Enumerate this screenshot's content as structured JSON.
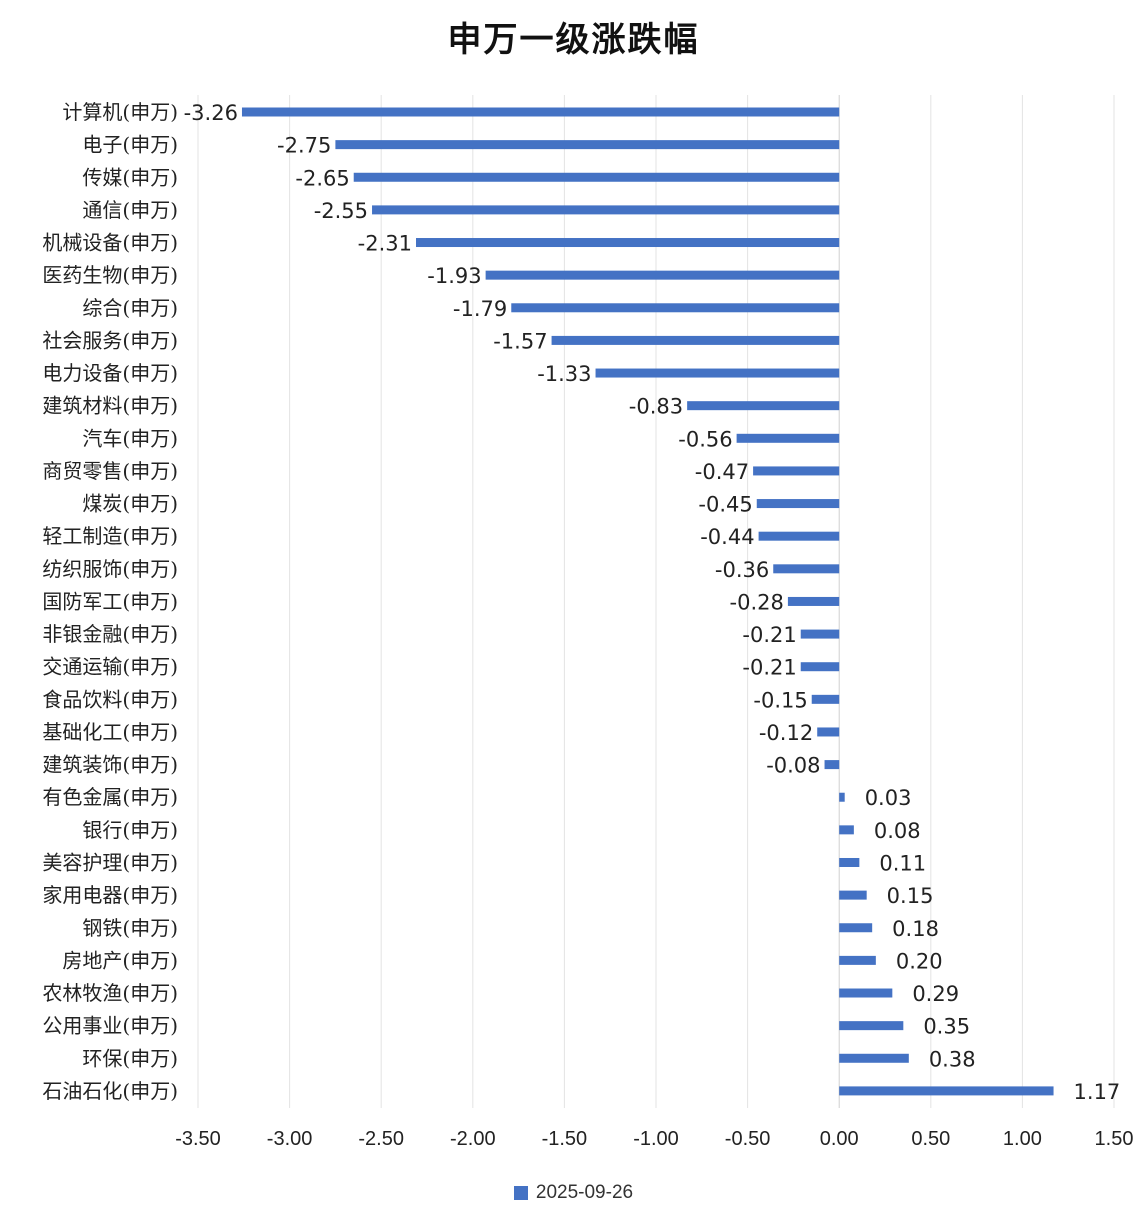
{
  "chart_data": {
    "type": "bar",
    "orientation": "horizontal",
    "title": "申万一级涨跌幅",
    "categories": [
      "计算机(申万)",
      "电子(申万)",
      "传媒(申万)",
      "通信(申万)",
      "机械设备(申万)",
      "医药生物(申万)",
      "综合(申万)",
      "社会服务(申万)",
      "电力设备(申万)",
      "建筑材料(申万)",
      "汽车(申万)",
      "商贸零售(申万)",
      "煤炭(申万)",
      "轻工制造(申万)",
      "纺织服饰(申万)",
      "国防军工(申万)",
      "非银金融(申万)",
      "交通运输(申万)",
      "食品饮料(申万)",
      "基础化工(申万)",
      "建筑装饰(申万)",
      "有色金属(申万)",
      "银行(申万)",
      "美容护理(申万)",
      "家用电器(申万)",
      "钢铁(申万)",
      "房地产(申万)",
      "农林牧渔(申万)",
      "公用事业(申万)",
      "环保(申万)",
      "石油石化(申万)"
    ],
    "series": [
      {
        "name": "2025-09-26",
        "color": "#4472C4",
        "values": [
          -3.26,
          -2.75,
          -2.65,
          -2.55,
          -2.31,
          -1.93,
          -1.79,
          -1.57,
          -1.33,
          -0.83,
          -0.56,
          -0.47,
          -0.45,
          -0.44,
          -0.36,
          -0.28,
          -0.21,
          -0.21,
          -0.15,
          -0.12,
          -0.08,
          0.03,
          0.08,
          0.11,
          0.15,
          0.18,
          0.2,
          0.29,
          0.35,
          0.38,
          1.17
        ],
        "value_labels": [
          "-3.26",
          "-2.75",
          "-2.65",
          "-2.55",
          "-2.31",
          "-1.93",
          "-1.79",
          "-1.57",
          "-1.33",
          "-0.83",
          "-0.56",
          "-0.47",
          "-0.45",
          "-0.44",
          "-0.36",
          "-0.28",
          "-0.21",
          "-0.21",
          "-0.15",
          "-0.12",
          "-0.08",
          "0.03",
          "0.08",
          "0.11",
          "0.15",
          "0.18",
          "0.20",
          "0.29",
          "0.35",
          "0.38",
          "1.17"
        ]
      }
    ],
    "xlim": [
      -3.5,
      1.5
    ],
    "x_ticks": [
      -3.5,
      -3.0,
      -2.5,
      -2.0,
      -1.5,
      -1.0,
      -0.5,
      0.0,
      0.5,
      1.0,
      1.5
    ],
    "x_tick_labels": [
      "-3.50",
      "-3.00",
      "-2.50",
      "-2.00",
      "-1.50",
      "-1.00",
      "-0.50",
      "0.00",
      "0.50",
      "1.00",
      "1.50"
    ],
    "grid": "vertical",
    "legend_position": "bottom"
  }
}
